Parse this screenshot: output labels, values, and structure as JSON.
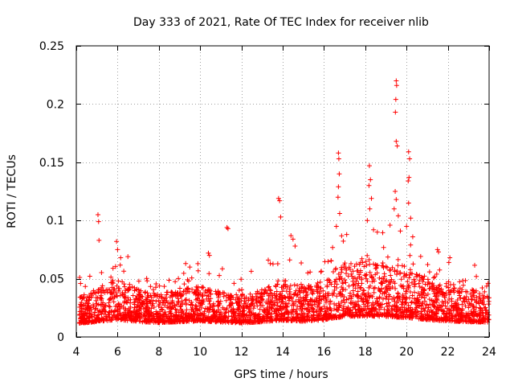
{
  "chart_data": {
    "type": "scatter",
    "title": "Day 333 of 2021, Rate Of TEC Index for receiver nlib",
    "xlabel": "GPS time / hours",
    "ylabel": "ROTI / TECUs",
    "xlim": [
      4,
      24
    ],
    "ylim": [
      0,
      0.25
    ],
    "grid": true,
    "marker": "+",
    "color": "#ff0000",
    "xticks": [
      4,
      6,
      8,
      10,
      12,
      14,
      16,
      18,
      20,
      22,
      24
    ],
    "xtick_labels": [
      "4",
      "6",
      "8",
      "10",
      "12",
      "14",
      "16",
      "18",
      "20",
      "22",
      "24"
    ],
    "yticks": [
      0,
      0.05,
      0.1,
      0.15,
      0.2,
      0.25
    ],
    "ytick_labels": [
      "0",
      "0.05",
      "0.1",
      "0.15",
      "0.2",
      "0.25"
    ],
    "baseline_profile": [
      [
        4.0,
        0.016
      ],
      [
        5.0,
        0.02
      ],
      [
        6.0,
        0.026
      ],
      [
        7.0,
        0.02
      ],
      [
        8.0,
        0.018
      ],
      [
        9.0,
        0.02
      ],
      [
        10.0,
        0.022
      ],
      [
        11.0,
        0.019
      ],
      [
        12.0,
        0.017
      ],
      [
        13.0,
        0.02
      ],
      [
        14.0,
        0.024
      ],
      [
        15.0,
        0.021
      ],
      [
        16.0,
        0.025
      ],
      [
        17.0,
        0.033
      ],
      [
        18.0,
        0.034
      ],
      [
        19.0,
        0.033
      ],
      [
        20.0,
        0.03
      ],
      [
        21.0,
        0.025
      ],
      [
        22.0,
        0.022
      ],
      [
        23.0,
        0.02
      ],
      [
        24.0,
        0.019
      ]
    ],
    "peak_points": [
      {
        "x": 5.05,
        "y": 0.105
      },
      {
        "x": 5.08,
        "y": 0.099
      },
      {
        "x": 5.1,
        "y": 0.083
      },
      {
        "x": 5.95,
        "y": 0.082
      },
      {
        "x": 6.0,
        "y": 0.075
      },
      {
        "x": 6.15,
        "y": 0.068
      },
      {
        "x": 6.5,
        "y": 0.069
      },
      {
        "x": 9.3,
        "y": 0.063
      },
      {
        "x": 9.5,
        "y": 0.06
      },
      {
        "x": 10.4,
        "y": 0.072
      },
      {
        "x": 10.45,
        "y": 0.07
      },
      {
        "x": 11.3,
        "y": 0.094
      },
      {
        "x": 11.35,
        "y": 0.093
      },
      {
        "x": 13.3,
        "y": 0.066
      },
      {
        "x": 13.4,
        "y": 0.063
      },
      {
        "x": 13.8,
        "y": 0.119
      },
      {
        "x": 13.85,
        "y": 0.117
      },
      {
        "x": 13.9,
        "y": 0.103
      },
      {
        "x": 14.4,
        "y": 0.087
      },
      {
        "x": 14.5,
        "y": 0.084
      },
      {
        "x": 14.6,
        "y": 0.078
      },
      {
        "x": 16.7,
        "y": 0.158
      },
      {
        "x": 16.72,
        "y": 0.153
      },
      {
        "x": 16.74,
        "y": 0.14
      },
      {
        "x": 16.7,
        "y": 0.129
      },
      {
        "x": 16.68,
        "y": 0.12
      },
      {
        "x": 16.76,
        "y": 0.106
      },
      {
        "x": 16.6,
        "y": 0.095
      },
      {
        "x": 17.1,
        "y": 0.088
      },
      {
        "x": 18.2,
        "y": 0.147
      },
      {
        "x": 18.25,
        "y": 0.135
      },
      {
        "x": 18.18,
        "y": 0.13
      },
      {
        "x": 18.3,
        "y": 0.119
      },
      {
        "x": 18.22,
        "y": 0.11
      },
      {
        "x": 18.1,
        "y": 0.1
      },
      {
        "x": 18.4,
        "y": 0.092
      },
      {
        "x": 19.5,
        "y": 0.22
      },
      {
        "x": 19.52,
        "y": 0.216
      },
      {
        "x": 19.48,
        "y": 0.204
      },
      {
        "x": 19.46,
        "y": 0.193
      },
      {
        "x": 19.5,
        "y": 0.168
      },
      {
        "x": 19.55,
        "y": 0.164
      },
      {
        "x": 19.45,
        "y": 0.125
      },
      {
        "x": 19.5,
        "y": 0.118
      },
      {
        "x": 19.4,
        "y": 0.11
      },
      {
        "x": 19.6,
        "y": 0.104
      },
      {
        "x": 19.2,
        "y": 0.096
      },
      {
        "x": 19.7,
        "y": 0.091
      },
      {
        "x": 20.1,
        "y": 0.159
      },
      {
        "x": 20.15,
        "y": 0.153
      },
      {
        "x": 20.12,
        "y": 0.137
      },
      {
        "x": 20.08,
        "y": 0.134
      },
      {
        "x": 20.1,
        "y": 0.115
      },
      {
        "x": 20.2,
        "y": 0.102
      },
      {
        "x": 20.0,
        "y": 0.095
      },
      {
        "x": 20.3,
        "y": 0.086
      },
      {
        "x": 21.5,
        "y": 0.075
      },
      {
        "x": 21.55,
        "y": 0.073
      },
      {
        "x": 22.1,
        "y": 0.068
      },
      {
        "x": 22.05,
        "y": 0.064
      },
      {
        "x": 23.95,
        "y": 0.046
      }
    ]
  }
}
